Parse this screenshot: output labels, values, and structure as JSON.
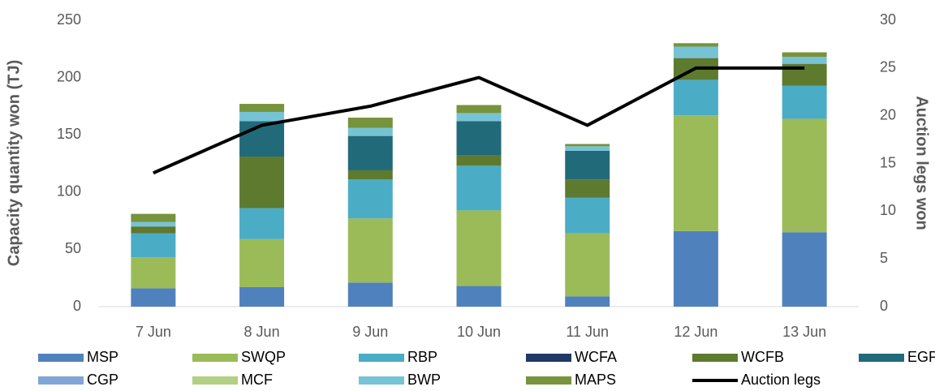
{
  "chart_data": {
    "type": "bar",
    "stacked": true,
    "categories": [
      "7 Jun",
      "8 Jun",
      "9 Jun",
      "10 Jun",
      "11 Jun",
      "12 Jun",
      "13 Jun"
    ],
    "series": [
      {
        "name": "MSP",
        "color": "#4f81bd",
        "values": [
          16,
          17,
          21,
          18,
          9,
          66,
          65
        ]
      },
      {
        "name": "SWQP",
        "color": "#9bbb59",
        "values": [
          27,
          42,
          56,
          66,
          55,
          101,
          99
        ]
      },
      {
        "name": "RBP",
        "color": "#4bacc6",
        "values": [
          21,
          27,
          34,
          39,
          31,
          31,
          29
        ]
      },
      {
        "name": "WCFA",
        "color": "#1f3864",
        "values": [
          0,
          0,
          0,
          0,
          0,
          0,
          0
        ]
      },
      {
        "name": "WCFB",
        "color": "#5e7a2f",
        "values": [
          6,
          45,
          8,
          9,
          16,
          19,
          19
        ]
      },
      {
        "name": "EGP",
        "color": "#216a7a",
        "values": [
          0,
          31,
          30,
          30,
          25,
          0,
          0
        ]
      },
      {
        "name": "CGP",
        "color": "#7fa6d6",
        "values": [
          0,
          0,
          0,
          0,
          0,
          0,
          0
        ]
      },
      {
        "name": "MCF",
        "color": "#b3cf81",
        "values": [
          0,
          0,
          0,
          0,
          0,
          0,
          0
        ]
      },
      {
        "name": "BWP",
        "color": "#77c3d6",
        "values": [
          4,
          8,
          7,
          7,
          4,
          10,
          6
        ]
      },
      {
        "name": "MAPS",
        "color": "#77933c",
        "values": [
          7,
          7,
          9,
          7,
          2,
          3,
          4
        ]
      },
      {
        "name": "Auction legs",
        "color": "#000000",
        "type": "line",
        "axis": "y2",
        "values": [
          14,
          19,
          21,
          24,
          19,
          25,
          25
        ]
      }
    ],
    "y_label": "Capacity quantity won (TJ)",
    "y2_label": "Auction legs won",
    "ylim": [
      0,
      250
    ],
    "yticks": [
      0,
      50,
      100,
      150,
      200,
      250
    ],
    "y2lim": [
      0,
      30
    ],
    "y2ticks": [
      0,
      5,
      10,
      15,
      20,
      25,
      30
    ],
    "grid": false,
    "legend": "bottom"
  }
}
